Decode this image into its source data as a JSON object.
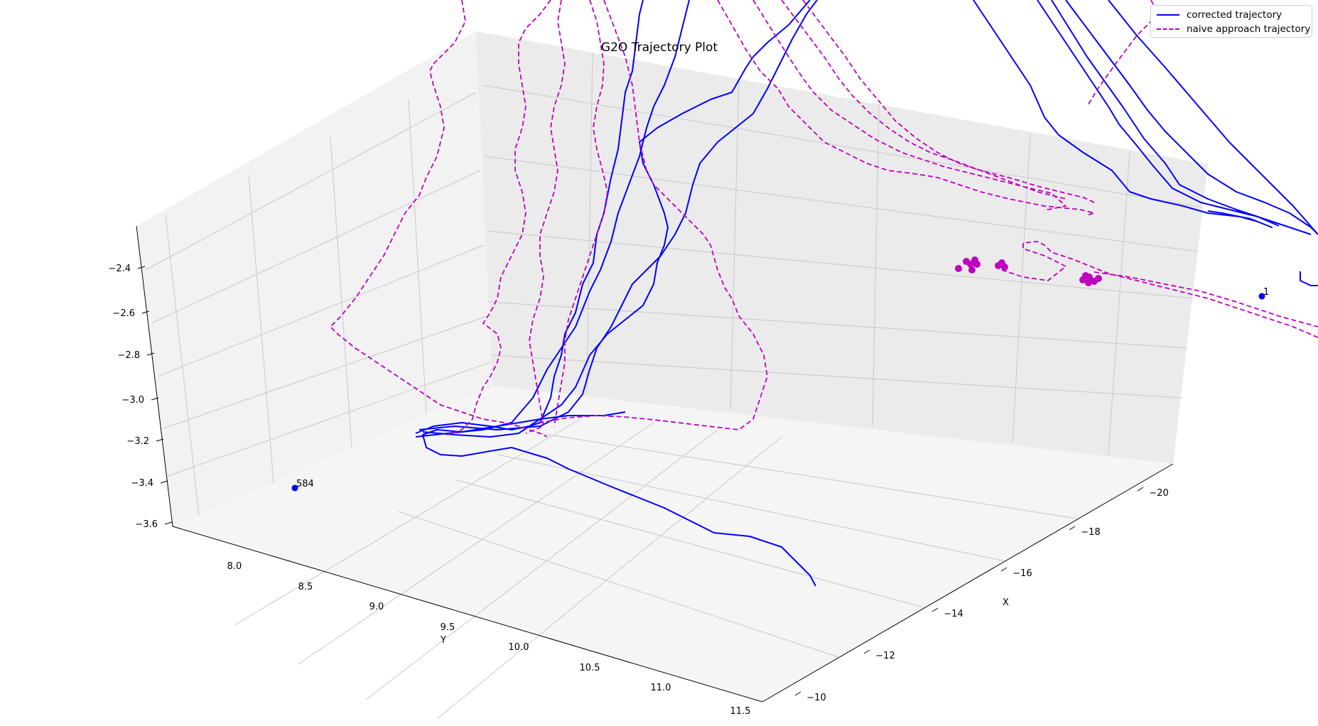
{
  "chart_data": {
    "type": "line",
    "projection": "3d",
    "title": "G2O Trajectory Plot",
    "xlabel": "X",
    "ylabel": "Y",
    "zlabel": "",
    "xlim": [
      -9.6,
      -21.2
    ],
    "ylim": [
      7.6,
      11.6
    ],
    "zlim": [
      -3.7,
      -2.25
    ],
    "xticks": [
      -20,
      -18,
      -16,
      -14,
      -12,
      -10
    ],
    "yticks": [
      8.0,
      8.5,
      9.0,
      9.5,
      10.0,
      10.5,
      11.0,
      11.5
    ],
    "zticks": [
      -2.4,
      -2.6,
      -2.8,
      -3.0,
      -3.2,
      -3.4,
      -3.6
    ],
    "xtick_labels": [
      "−20",
      "−18",
      "−16",
      "−14",
      "−12",
      "−10"
    ],
    "ytick_labels": [
      "8.0",
      "8.5",
      "9.0",
      "9.5",
      "10.0",
      "10.5",
      "11.0",
      "11.5"
    ],
    "ztick_labels": [
      "−2.4",
      "−2.6",
      "−2.8",
      "−3.0",
      "−3.2",
      "−3.4",
      "−3.6"
    ],
    "grid": true,
    "legend_position": "top-right",
    "series": [
      {
        "name": "corrected trajectory",
        "color": "#0000ff",
        "style": "solid"
      },
      {
        "name": "naive approach trajectory",
        "color": "#bf00bf",
        "style": "dashed"
      }
    ],
    "annotations": [
      {
        "text": "584",
        "x": -9.9,
        "y": 7.75,
        "z": -3.45,
        "color": "#0000ff"
      },
      {
        "text": "1",
        "x": -20.9,
        "y": 11.0,
        "z": -2.7,
        "color": "#0000ff"
      }
    ],
    "scatter_points_color": "#bf00bf"
  }
}
